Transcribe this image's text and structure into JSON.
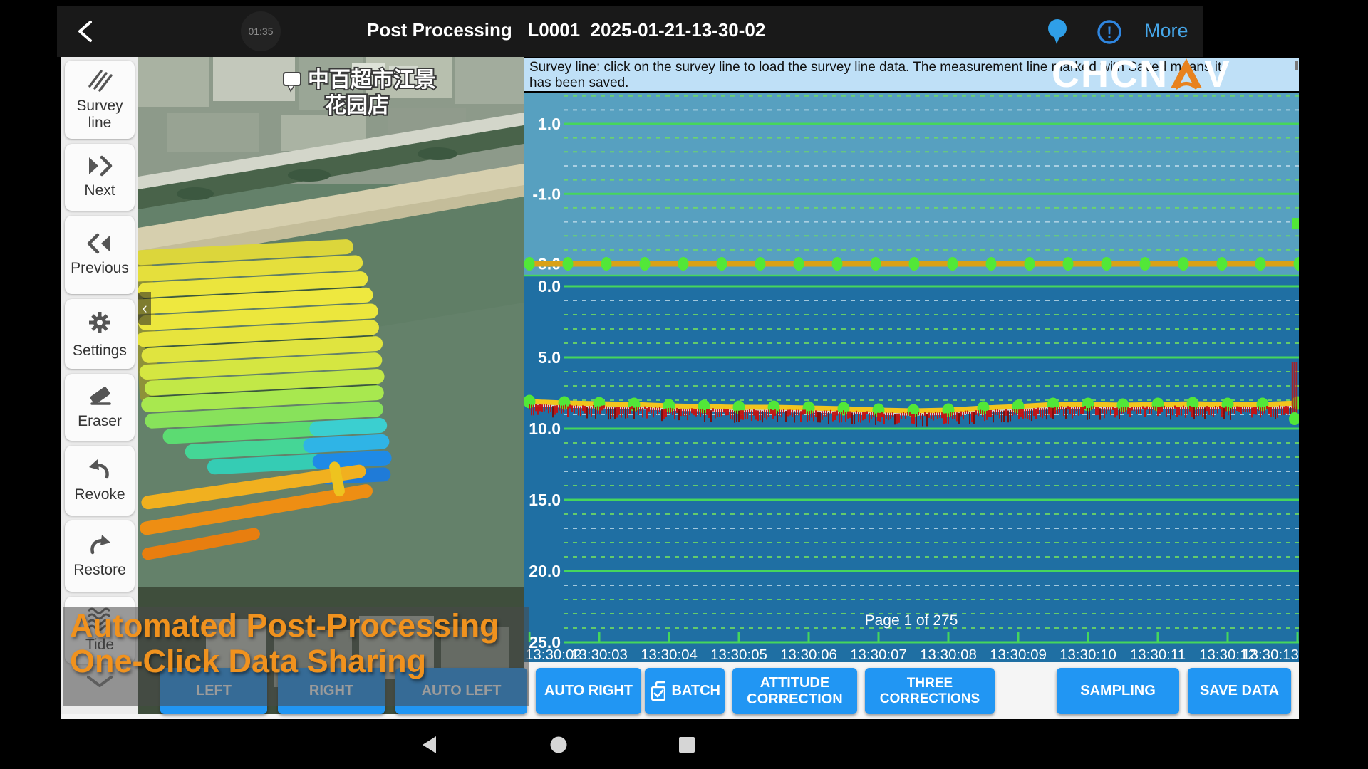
{
  "topbar": {
    "title": "Post Processing _L0001_2025-01-21-13-30-02",
    "timer": "01:35",
    "more_label": "More"
  },
  "logo": {
    "brand": "CHCNAV",
    "prefix": "CHCN",
    "suffix": "V"
  },
  "sidebar": {
    "items": [
      {
        "id": "survey-line",
        "label": "Survey line"
      },
      {
        "id": "next",
        "label": "Next"
      },
      {
        "id": "previous",
        "label": "Previous"
      },
      {
        "id": "settings",
        "label": "Settings"
      },
      {
        "id": "eraser",
        "label": "Eraser"
      },
      {
        "id": "revoke",
        "label": "Revoke"
      },
      {
        "id": "restore",
        "label": "Restore"
      },
      {
        "id": "tide",
        "label": "Tide"
      }
    ]
  },
  "map": {
    "poi": {
      "line1": "中百超市江景",
      "line2": "花园店"
    }
  },
  "banner": {
    "line1": "Survey line: click on the survey line to load the survey line data. The measurement line marked with Saved means it",
    "line2": "has been saved."
  },
  "chart_data": {
    "type": "line",
    "title": "",
    "page_label": "Page 1 of 275",
    "x_ticklabels": [
      "13:30:02",
      "13:30:03",
      "13:30:04",
      "13:30:05",
      "13:30:06",
      "13:30:07",
      "13:30:08",
      "13:30:09",
      "13:30:10",
      "13:30:11",
      "13:30:12",
      "13:30:13"
    ],
    "panels": [
      {
        "name": "draft_panel",
        "y_ticklabels": [
          "1.0",
          "-1.0",
          "-3.0"
        ],
        "ylim": [
          1.9,
          -3.35
        ],
        "y_minor_step": 0.4,
        "series": [
          {
            "name": "draft",
            "constant_value": -3.0
          }
        ]
      },
      {
        "name": "depth_panel",
        "y_ticklabels": [
          "0.0",
          "5.0",
          "10.0",
          "15.0",
          "20.0",
          "25.0"
        ],
        "ylim": [
          0.0,
          26.6
        ],
        "y_minor_step": 1.0,
        "series": [
          {
            "name": "depth_smoothed",
            "values": [
              8.1,
              8.2,
              8.25,
              8.3,
              8.4,
              8.45,
              8.5,
              8.5,
              8.55,
              8.6,
              8.7,
              8.75,
              8.7,
              8.55,
              8.45,
              8.3,
              8.3,
              8.35,
              8.3,
              8.25,
              8.3,
              8.3,
              8.2
            ]
          },
          {
            "name": "depth_raw",
            "style": "red_tick_band"
          }
        ]
      }
    ],
    "legend": [],
    "grid": true
  },
  "action_buttons": {
    "left_group": [
      {
        "label": "LEFT"
      },
      {
        "label": "RIGHT"
      },
      {
        "label": "AUTO LEFT"
      },
      {
        "label": "AUTO RIGHT"
      }
    ],
    "right_group": [
      {
        "label": "BATCH"
      },
      {
        "label": "ATTITUDE CORRECTION"
      },
      {
        "label": "THREE CORRECTIONS"
      },
      {
        "label": "SAMPLING"
      },
      {
        "label": "SAVE DATA"
      }
    ]
  },
  "caption_overlay": {
    "line1": "Automated Post-Processing",
    "line2": "One-Click Data Sharing"
  },
  "colors": {
    "accent_blue": "#2196f3",
    "caption_orange": "#f0921e",
    "banner_bg": "#bfe0f7",
    "chart_upper_bg": "#57a0c0",
    "chart_lower_bg": "#1f6fa3",
    "grid_green": "#46d65c",
    "grid_minor_green": "#6fdc62",
    "grid_minor_light": "#b9d8e8",
    "depth_line": "#f2c51d",
    "depth_shadow_line": "#d9d9d9",
    "marker_green": "#52e738",
    "draft_line": "#d9a117",
    "raw_red": "#c41212"
  }
}
